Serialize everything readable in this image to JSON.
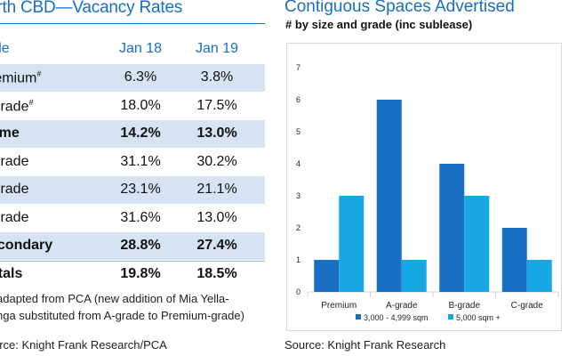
{
  "table": {
    "title": "erth CBD—Vacancy Rates",
    "headers": [
      "ade",
      "Jan 18",
      "Jan 19"
    ],
    "rows": [
      {
        "label": "remium",
        "sup": "#",
        "jan18": "6.3%",
        "jan19": "3.8%",
        "shaded": true,
        "bold": false
      },
      {
        "label": "Grade",
        "sup": "#",
        "jan18": "18.0%",
        "jan19": "17.5%",
        "shaded": false,
        "bold": false
      },
      {
        "label": "rime",
        "sup": "",
        "jan18": "14.2%",
        "jan19": "13.0%",
        "shaded": true,
        "bold": true
      },
      {
        "label": "Grade",
        "sup": "",
        "jan18": "31.1%",
        "jan19": "30.2%",
        "shaded": false,
        "bold": false
      },
      {
        "label": "Grade",
        "sup": "",
        "jan18": "23.1%",
        "jan19": "21.1%",
        "shaded": true,
        "bold": false
      },
      {
        "label": "Grade",
        "sup": "",
        "jan18": "31.6%",
        "jan19": "13.0%",
        "shaded": false,
        "bold": false
      },
      {
        "label": "econdary",
        "sup": "",
        "jan18": "28.8%",
        "jan19": "27.4%",
        "shaded": true,
        "bold": true
      },
      {
        "label": "otals",
        "sup": "",
        "jan18": "19.8%",
        "jan19": "18.5%",
        "shaded": false,
        "bold": true
      }
    ],
    "note_line1": "adapted from PCA (new addition of Mia Yella-",
    "note_line2": "nga substituted from A-grade to Premium-grade)",
    "source": "urce:  Knight Frank Research/PCA"
  },
  "chart_data": {
    "type": "bar",
    "title": "Contiguous Spaces Advertised",
    "subtitle": "# by size and grade (inc sublease)",
    "categories": [
      "Premium",
      "A-grade",
      "B-grade",
      "C-grade"
    ],
    "series": [
      {
        "name": "3,000 - 4,999 sqm",
        "values": [
          1,
          6,
          4,
          2
        ],
        "color": "#1b6fc2"
      },
      {
        "name": "5,000 sqm +",
        "values": [
          3,
          1,
          3,
          1
        ],
        "color": "#17a8e3"
      }
    ],
    "ylim": [
      0,
      7
    ],
    "yticks": [
      "0",
      "1",
      "2",
      "3",
      "4",
      "5",
      "6",
      "7"
    ],
    "grid": false,
    "legend_position": "bottom",
    "source": "Source:  Knight Frank Research"
  }
}
